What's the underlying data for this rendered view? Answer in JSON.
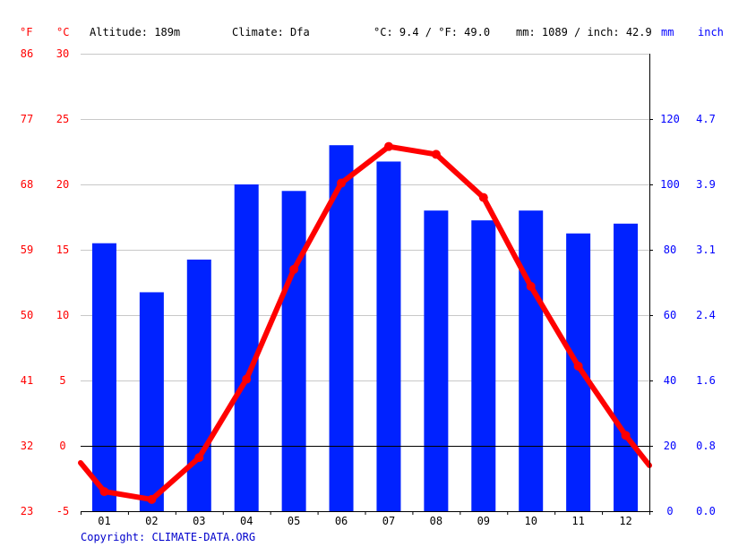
{
  "header": {
    "unit_f": "°F",
    "unit_c": "°C",
    "altitude": "Altitude: 189m",
    "climate": "Climate: Dfa",
    "avg_temp": "°C: 9.4 / °F: 49.0",
    "precip": "mm: 1089 / inch: 42.9",
    "unit_mm": "mm",
    "unit_inch": "inch"
  },
  "footer": {
    "copyright": "Copyright: CLIMATE-DATA.ORG"
  },
  "colors": {
    "bars": "#0022ff",
    "line": "#ff0000",
    "temp_axis_text": "#ff0000",
    "precip_axis_text": "#0000ff",
    "grid": "#c8c8c8",
    "zero_line": "#000000"
  },
  "chart_data": {
    "type": "bar",
    "combined_with": "line",
    "categories": [
      "01",
      "02",
      "03",
      "04",
      "05",
      "06",
      "07",
      "08",
      "09",
      "10",
      "11",
      "12"
    ],
    "series": [
      {
        "type": "bar",
        "axis": "right",
        "unit": "mm",
        "values": [
          82,
          67,
          77,
          100,
          98,
          112,
          107,
          92,
          89,
          92,
          85,
          88
        ]
      },
      {
        "type": "line",
        "axis": "left",
        "unit": "°C",
        "values": [
          -3.5,
          -4.1,
          -0.9,
          5.1,
          13.5,
          20.1,
          22.9,
          22.3,
          19.0,
          12.2,
          6.1,
          0.8
        ],
        "edge_values": [
          -1.3,
          -1.5
        ]
      }
    ],
    "left_axis_c": {
      "min": -5,
      "max": 30,
      "ticks": [
        "-5",
        "0",
        "5",
        "10",
        "15",
        "20",
        "25",
        "30"
      ]
    },
    "left_axis_f": {
      "ticks": [
        "23",
        "32",
        "41",
        "50",
        "59",
        "68",
        "77",
        "86"
      ]
    },
    "right_axis_mm": {
      "min": 0,
      "max": 140,
      "ticks": [
        "0",
        "20",
        "40",
        "60",
        "80",
        "100",
        "120"
      ]
    },
    "right_axis_inch": {
      "ticks": [
        "0.0",
        "0.8",
        "1.6",
        "2.4",
        "3.1",
        "3.9",
        "4.7"
      ]
    },
    "grid": true
  }
}
